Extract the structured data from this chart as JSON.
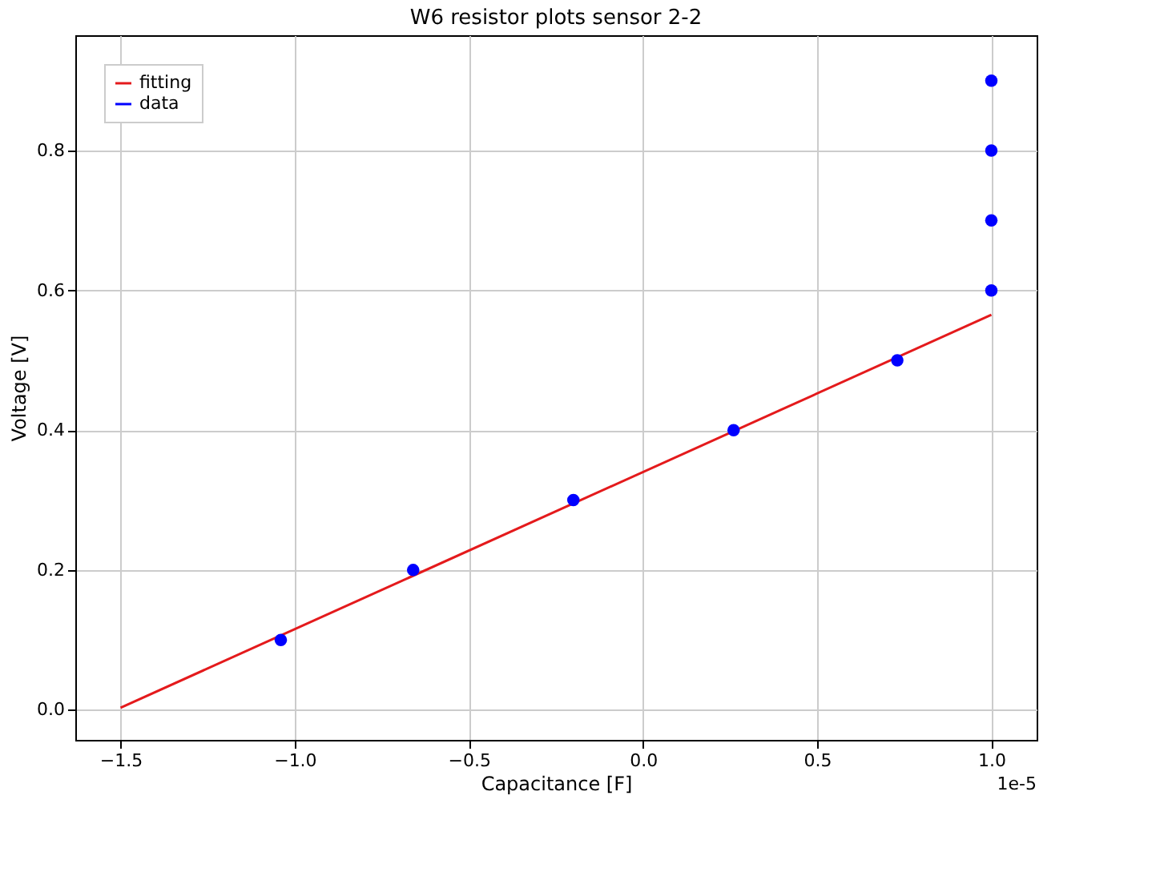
{
  "chart_data": {
    "type": "scatter",
    "title": "W6 resistor plots sensor 2-2",
    "xlabel": "Capacitance [F]",
    "ylabel": "Voltage [V]",
    "series": [
      {
        "name": "fitting",
        "type": "line",
        "color": "#e41a1c",
        "x": [
          -1.5,
          1.0
        ],
        "values": [
          0.003,
          0.565
        ],
        "line_style": "solid"
      },
      {
        "name": "data",
        "color": "#0000ff",
        "marker": "circle",
        "x": [
          -1.04,
          -0.66,
          -0.2,
          0.26,
          0.73,
          1.0,
          1.0,
          1.0,
          1.0
        ],
        "values": [
          0.1,
          0.2,
          0.3,
          0.4,
          0.5,
          0.6,
          0.7,
          0.8,
          0.9
        ]
      }
    ],
    "xlim": [
      -1.63,
      1.13
    ],
    "xticks": [
      {
        "value": -1.5,
        "label": "−1.5"
      },
      {
        "value": -1.0,
        "label": "−1.0"
      },
      {
        "value": -0.5,
        "label": "−0.5"
      },
      {
        "value": 0.0,
        "label": "0.0"
      },
      {
        "value": 0.5,
        "label": "0.5"
      },
      {
        "value": 1.0,
        "label": "1.0"
      }
    ],
    "ylim": [
      -0.043,
      0.965
    ],
    "yticks": [
      {
        "value": 0.0,
        "label": "0.0"
      },
      0.2,
      0.4,
      0.6,
      0.8
    ],
    "grid": true,
    "legend": "top left",
    "annotations": [
      "1e-5"
    ]
  }
}
